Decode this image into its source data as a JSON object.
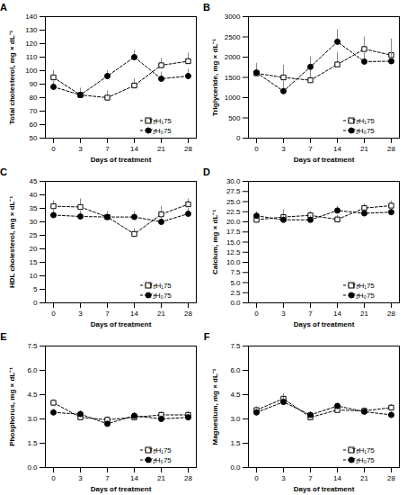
{
  "chart_data": [
    {
      "type": "line",
      "title": "A",
      "categories": [
        "0",
        "3",
        "7",
        "14",
        "21",
        "28"
      ],
      "x_label": "Days of treatment",
      "y_label": "Total cholesterol, mg × dL⁻¹",
      "ylim": [
        50,
        140
      ],
      "yticks": [
        50,
        60,
        70,
        80,
        90,
        100,
        110,
        120,
        130,
        140
      ],
      "legend": "lower right",
      "series": [
        {
          "name": "T₀H₁75",
          "color": "#000000",
          "marker": "square",
          "line_style": "dashed",
          "values": [
            95,
            82,
            80,
            89,
            104,
            107
          ],
          "errors": [
            5,
            5,
            5,
            5,
            5,
            6
          ]
        },
        {
          "name": "T₁H₀75",
          "color": "#000000",
          "marker": "circle",
          "line_style": "dashed",
          "values": [
            88,
            82,
            96,
            110,
            94,
            96
          ],
          "errors": [
            4,
            4,
            4,
            5,
            5,
            5
          ]
        }
      ]
    },
    {
      "type": "line",
      "title": "B",
      "categories": [
        "0",
        "3",
        "7",
        "14",
        "21",
        "28"
      ],
      "x_label": "Days of treatment",
      "y_label": "Triglyceride, mg × dL⁻¹",
      "ylim": [
        0,
        3000
      ],
      "yticks": [
        0,
        500,
        1000,
        1500,
        2000,
        2500,
        3000
      ],
      "legend": "lower right",
      "series": [
        {
          "name": "T₀H₁75",
          "color": "#000000",
          "marker": "square",
          "line_style": "dashed",
          "values": [
            1600,
            1500,
            1430,
            1820,
            2200,
            2050
          ],
          "errors": [
            250,
            300,
            300,
            300,
            300,
            400
          ]
        },
        {
          "name": "T₁H₀75",
          "color": "#000000",
          "marker": "circle",
          "line_style": "dashed",
          "values": [
            1620,
            1160,
            1760,
            2380,
            1890,
            1900
          ],
          "errors": [
            200,
            250,
            250,
            300,
            250,
            300
          ]
        }
      ]
    },
    {
      "type": "line",
      "title": "C",
      "categories": [
        "0",
        "3",
        "7",
        "14",
        "21",
        "28"
      ],
      "x_label": "Days of treatment",
      "y_label": "HDL cholesterol, mg × dL⁻¹",
      "ylim": [
        0,
        45
      ],
      "yticks": [
        0,
        5,
        10,
        15,
        20,
        25,
        30,
        35,
        40,
        45
      ],
      "legend": "lower right",
      "series": [
        {
          "name": "T₀H₁75",
          "color": "#000000",
          "marker": "square",
          "line_style": "dashed",
          "values": [
            35.8,
            35.5,
            31.8,
            25.5,
            32.8,
            36.5
          ],
          "errors": [
            2,
            3,
            2,
            2,
            3,
            2
          ]
        },
        {
          "name": "T₁H₀75",
          "color": "#000000",
          "marker": "circle",
          "line_style": "dashed",
          "values": [
            32.5,
            32,
            31.8,
            31.8,
            30,
            33
          ],
          "errors": [
            2,
            2,
            2,
            2,
            2,
            2
          ]
        }
      ]
    },
    {
      "type": "line",
      "title": "D",
      "categories": [
        "0",
        "3",
        "7",
        "14",
        "21",
        "28"
      ],
      "x_label": "Days of treatment",
      "y_label": "Calcium, mg × dL⁻¹",
      "ylim": [
        0,
        30
      ],
      "yticks": [
        {
          "value": 0,
          "label": "0.0"
        },
        {
          "value": 2.5,
          "label": "2.5"
        },
        {
          "value": 5,
          "label": "5.0"
        },
        {
          "value": 7.5,
          "label": "7.5"
        },
        {
          "value": 10,
          "label": "10.0"
        },
        {
          "value": 12.5,
          "label": "12.5"
        },
        {
          "value": 15,
          "label": "15.0"
        },
        {
          "value": 17.5,
          "label": "17.5"
        },
        {
          "value": 20,
          "label": "20.0"
        },
        {
          "value": 22.5,
          "label": "22.5"
        },
        {
          "value": 25,
          "label": "25.0"
        },
        {
          "value": 27.5,
          "label": "27.5"
        },
        {
          "value": 30,
          "label": "30.0"
        }
      ],
      "legend": "lower right",
      "series": [
        {
          "name": "T₀H₁75",
          "color": "#000000",
          "marker": "square",
          "line_style": "dashed",
          "values": [
            20.5,
            21.2,
            21.6,
            20.6,
            23.4,
            24
          ],
          "errors": [
            1,
            1.8,
            1,
            1,
            1,
            1.2
          ]
        },
        {
          "name": "T₁H₀75",
          "color": "#000000",
          "marker": "circle",
          "line_style": "dashed",
          "values": [
            21.5,
            20.5,
            20.5,
            22.8,
            22.1,
            22.4
          ],
          "errors": [
            1,
            1,
            1,
            1,
            1,
            1
          ]
        }
      ]
    },
    {
      "type": "line",
      "title": "E",
      "categories": [
        "0",
        "3",
        "7",
        "14",
        "21",
        "28"
      ],
      "x_label": "Days of treatment",
      "y_label": "Phosphorus, mg × dL⁻¹",
      "ylim": [
        0,
        7.5
      ],
      "yticks": [
        {
          "value": 0,
          "label": "0.0"
        },
        {
          "value": 1.5,
          "label": "1.5"
        },
        {
          "value": 3,
          "label": "3.0"
        },
        {
          "value": 4.5,
          "label": "4.5"
        },
        {
          "value": 6,
          "label": "6.0"
        },
        {
          "value": 7.5,
          "label": "7.5"
        }
      ],
      "legend": "lower right",
      "series": [
        {
          "name": "T₀H₁75",
          "color": "#000000",
          "marker": "square",
          "line_style": "dashed",
          "values": [
            4,
            3.1,
            2.95,
            3.1,
            3.25,
            3.25
          ],
          "errors": [
            0.2,
            0.2,
            0.2,
            0.2,
            0.2,
            0.2
          ]
        },
        {
          "name": "T₁H₀75",
          "color": "#000000",
          "marker": "circle",
          "line_style": "dashed",
          "values": [
            3.4,
            3.3,
            2.7,
            3.2,
            3,
            3.1
          ],
          "errors": [
            0.2,
            0.2,
            0.2,
            0.2,
            0.2,
            0.2
          ]
        }
      ]
    },
    {
      "type": "line",
      "title": "F",
      "categories": [
        "0",
        "3",
        "7",
        "14",
        "21",
        "28"
      ],
      "x_label": "Days of treatment",
      "y_label": "Magnesium, mg × dL⁻¹",
      "ylim": [
        0,
        7.5
      ],
      "yticks": [
        {
          "value": 0,
          "label": "0.0"
        },
        {
          "value": 1.5,
          "label": "1.5"
        },
        {
          "value": 3,
          "label": "3.0"
        },
        {
          "value": 4.5,
          "label": "4.5"
        },
        {
          "value": 6,
          "label": "6.0"
        },
        {
          "value": 7.5,
          "label": "7.5"
        }
      ],
      "legend": "lower right",
      "series": [
        {
          "name": "T₀H₁75",
          "color": "#000000",
          "marker": "square",
          "line_style": "dashed",
          "values": [
            3.55,
            4.25,
            3.1,
            3.55,
            3.5,
            3.7
          ],
          "errors": [
            0.2,
            0.3,
            0.2,
            0.2,
            0.2,
            0.2
          ]
        },
        {
          "name": "T₁H₀75",
          "color": "#000000",
          "marker": "circle",
          "line_style": "dashed",
          "values": [
            3.4,
            4.05,
            3.25,
            3.8,
            3.45,
            3.25
          ],
          "errors": [
            0.2,
            0.3,
            0.2,
            0.2,
            0.2,
            0.2
          ]
        }
      ]
    }
  ]
}
